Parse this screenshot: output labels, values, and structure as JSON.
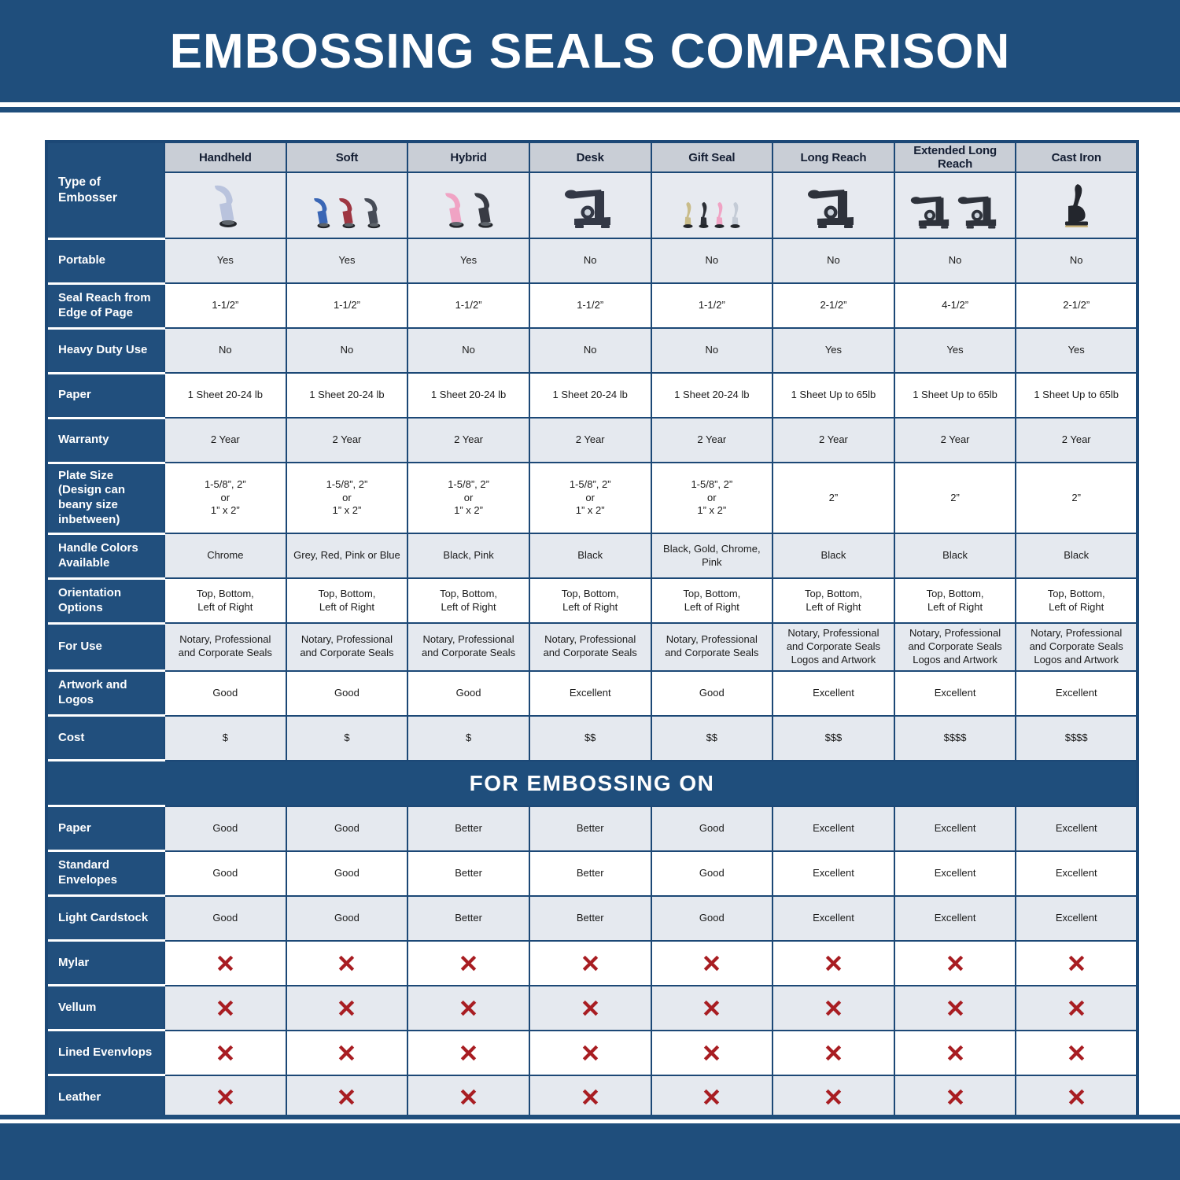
{
  "header": {
    "title": "EMBOSSING SEALS COMPARISON"
  },
  "chart_data": {
    "type": "table",
    "title": "EMBOSSING SEALS COMPARISON",
    "corner_label": "Type of Embosser",
    "section_title": "FOR EMBOSSING ON",
    "columns": [
      {
        "label": "Handheld",
        "embosser": {
          "shape": "handheld",
          "colors": [
            "#b9c3dd"
          ]
        }
      },
      {
        "label": "Soft",
        "embosser": {
          "shape": "handheld",
          "colors": [
            "#3a66b5",
            "#9e3642",
            "#474c57"
          ]
        }
      },
      {
        "label": "Hybrid",
        "embosser": {
          "shape": "handheld",
          "colors": [
            "#f0a3c4",
            "#383b44"
          ]
        }
      },
      {
        "label": "Desk",
        "embosser": {
          "shape": "desk",
          "colors": [
            "#333846"
          ]
        }
      },
      {
        "label": "Gift Seal",
        "embosser": {
          "shape": "gift",
          "colors": [
            "#c9bc8a",
            "#2c2f36",
            "#f0a3c4",
            "#c4cbd6"
          ]
        }
      },
      {
        "label": "Long Reach",
        "embosser": {
          "shape": "desk",
          "colors": [
            "#2e323b"
          ]
        }
      },
      {
        "label": "Extended Long Reach",
        "embosser": {
          "shape": "desk",
          "colors": [
            "#2e323b",
            "#2e323b"
          ]
        }
      },
      {
        "label": "Cast Iron",
        "embosser": {
          "shape": "iron",
          "colors": [
            "#23262d"
          ]
        }
      }
    ],
    "spec_rows": [
      {
        "label": "Portable",
        "kind": "text",
        "values": [
          "Yes",
          "Yes",
          "Yes",
          "No",
          "No",
          "No",
          "No",
          "No"
        ]
      },
      {
        "label": "Seal Reach from Edge of Page",
        "kind": "text",
        "values": [
          "1-1/2”",
          "1-1/2”",
          "1-1/2”",
          "1-1/2”",
          "1-1/2”",
          "2-1/2”",
          "4-1/2”",
          "2-1/2”"
        ]
      },
      {
        "label": "Heavy Duty Use",
        "kind": "text",
        "values": [
          "No",
          "No",
          "No",
          "No",
          "No",
          "Yes",
          "Yes",
          "Yes"
        ]
      },
      {
        "label": "Paper",
        "kind": "text",
        "values": [
          "1 Sheet 20-24 lb",
          "1 Sheet 20-24 lb",
          "1 Sheet 20-24 lb",
          "1 Sheet 20-24 lb",
          "1 Sheet 20-24 lb",
          "1 Sheet Up to 65lb",
          "1 Sheet Up to 65lb",
          "1 Sheet Up to 65lb"
        ]
      },
      {
        "label": "Warranty",
        "kind": "text",
        "values": [
          "2 Year",
          "2 Year",
          "2 Year",
          "2 Year",
          "2 Year",
          "2 Year",
          "2 Year",
          "2 Year"
        ]
      },
      {
        "label": "Plate Size (Design can beany size inbetween)",
        "kind": "text",
        "values": [
          "1-5/8”, 2”\nor\n1” x 2”",
          "1-5/8”, 2”\nor\n1” x 2”",
          "1-5/8”, 2”\nor\n1” x 2”",
          "1-5/8”, 2”\nor\n1” x 2”",
          "1-5/8”, 2”\nor\n1” x 2”",
          "2”",
          "2”",
          "2”"
        ]
      },
      {
        "label": "Handle Colors Available",
        "kind": "text",
        "values": [
          "Chrome",
          "Grey, Red, Pink or Blue",
          "Black, Pink",
          "Black",
          "Black, Gold, Chrome, Pink",
          "Black",
          "Black",
          "Black"
        ]
      },
      {
        "label": "Orientation Options",
        "kind": "text",
        "values": [
          "Top, Bottom,\nLeft of Right",
          "Top, Bottom,\nLeft of Right",
          "Top, Bottom,\nLeft of Right",
          "Top, Bottom,\nLeft of Right",
          "Top, Bottom,\nLeft of Right",
          "Top, Bottom,\nLeft of Right",
          "Top, Bottom,\nLeft of Right",
          "Top, Bottom,\nLeft of Right"
        ]
      },
      {
        "label": "For Use",
        "kind": "text",
        "values": [
          "Notary, Professional\nand Corporate Seals",
          "Notary, Professional\nand Corporate Seals",
          "Notary, Professional\nand Corporate Seals",
          "Notary, Professional\nand Corporate Seals",
          "Notary, Professional\nand Corporate Seals",
          "Notary, Professional\nand Corporate Seals\nLogos and Artwork",
          "Notary, Professional\nand Corporate Seals\nLogos and Artwork",
          "Notary, Professional\nand Corporate Seals\nLogos and Artwork"
        ]
      },
      {
        "label": "Artwork and Logos",
        "kind": "text",
        "values": [
          "Good",
          "Good",
          "Good",
          "Excellent",
          "Good",
          "Excellent",
          "Excellent",
          "Excellent"
        ]
      },
      {
        "label": "Cost",
        "kind": "text",
        "values": [
          "$",
          "$",
          "$",
          "$$",
          "$$",
          "$$$",
          "$$$$",
          "$$$$"
        ]
      }
    ],
    "embossing_rows": [
      {
        "label": "Paper",
        "kind": "text",
        "values": [
          "Good",
          "Good",
          "Better",
          "Better",
          "Good",
          "Excellent",
          "Excellent",
          "Excellent"
        ]
      },
      {
        "label": "Standard Envelopes",
        "kind": "text",
        "values": [
          "Good",
          "Good",
          "Better",
          "Better",
          "Good",
          "Excellent",
          "Excellent",
          "Excellent"
        ]
      },
      {
        "label": "Light Cardstock",
        "kind": "text",
        "values": [
          "Good",
          "Good",
          "Better",
          "Better",
          "Good",
          "Excellent",
          "Excellent",
          "Excellent"
        ]
      },
      {
        "label": "Mylar",
        "kind": "icon",
        "icon": "red-x-icon",
        "values": [
          "not-suitable",
          "not-suitable",
          "not-suitable",
          "not-suitable",
          "not-suitable",
          "not-suitable",
          "not-suitable",
          "not-suitable"
        ]
      },
      {
        "label": "Vellum",
        "kind": "icon",
        "icon": "red-x-icon",
        "values": [
          "not-suitable",
          "not-suitable",
          "not-suitable",
          "not-suitable",
          "not-suitable",
          "not-suitable",
          "not-suitable",
          "not-suitable"
        ]
      },
      {
        "label": "Lined Evenvlops",
        "kind": "icon",
        "icon": "red-x-icon",
        "values": [
          "not-suitable",
          "not-suitable",
          "not-suitable",
          "not-suitable",
          "not-suitable",
          "not-suitable",
          "not-suitable",
          "not-suitable"
        ]
      },
      {
        "label": "Leather",
        "kind": "icon",
        "icon": "red-x-icon",
        "values": [
          "not-suitable",
          "not-suitable",
          "not-suitable",
          "not-suitable",
          "not-suitable",
          "not-suitable",
          "not-suitable",
          "not-suitable"
        ]
      }
    ],
    "colors": {
      "band_blue": "#1f4e7c",
      "label_blue": "#214f7d",
      "border_blue": "#1c4876",
      "header_gray": "#c9ced6",
      "row_shade": "#e5e9ef",
      "image_row_bg": "#e7eaf0",
      "x_red": "#a81d22"
    }
  }
}
